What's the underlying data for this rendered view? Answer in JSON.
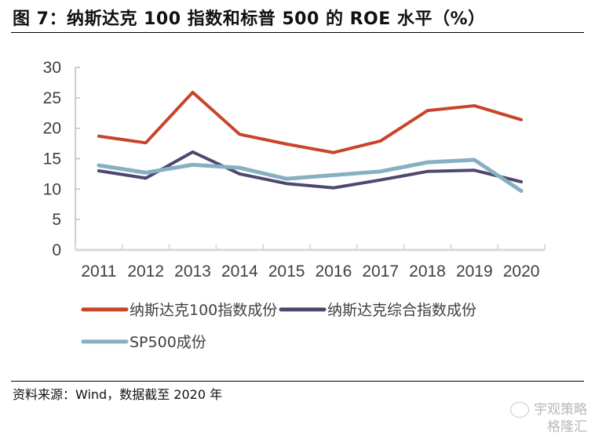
{
  "header": {
    "title": "图 7：纳斯达克 100 指数和标普 500 的 ROE 水平（%）"
  },
  "footer": {
    "source": "资料来源：Wind，数据截至 2020 年"
  },
  "watermark": {
    "line1": "宇观策略",
    "line2": "格隆汇",
    "icon": "wechat-icon"
  },
  "chart_data": {
    "type": "line",
    "title": "图 7：纳斯达克 100 指数和标普 500 的 ROE 水平（%）",
    "xlabel": "",
    "ylabel": "",
    "x": [
      "2011",
      "2012",
      "2013",
      "2014",
      "2015",
      "2016",
      "2017",
      "2018",
      "2019",
      "2020"
    ],
    "ylim": [
      0,
      30
    ],
    "yticks": [
      0,
      5,
      10,
      15,
      20,
      25,
      30
    ],
    "grid": false,
    "legend_position": "bottom",
    "series": [
      {
        "name": "纳斯达克100指数成份",
        "color": "#c8442a",
        "values": [
          18.7,
          17.6,
          25.9,
          19.0,
          17.4,
          16.0,
          17.9,
          22.9,
          23.7,
          21.4
        ]
      },
      {
        "name": "纳斯达克综合指数成份",
        "color": "#4e4870",
        "values": [
          13.0,
          11.8,
          16.1,
          12.5,
          10.9,
          10.2,
          11.5,
          12.9,
          13.1,
          11.2
        ]
      },
      {
        "name": "SP500成份",
        "color": "#86b0c2",
        "values": [
          13.9,
          12.7,
          14.0,
          13.5,
          11.7,
          12.3,
          12.9,
          14.4,
          14.8,
          9.7
        ]
      }
    ]
  }
}
